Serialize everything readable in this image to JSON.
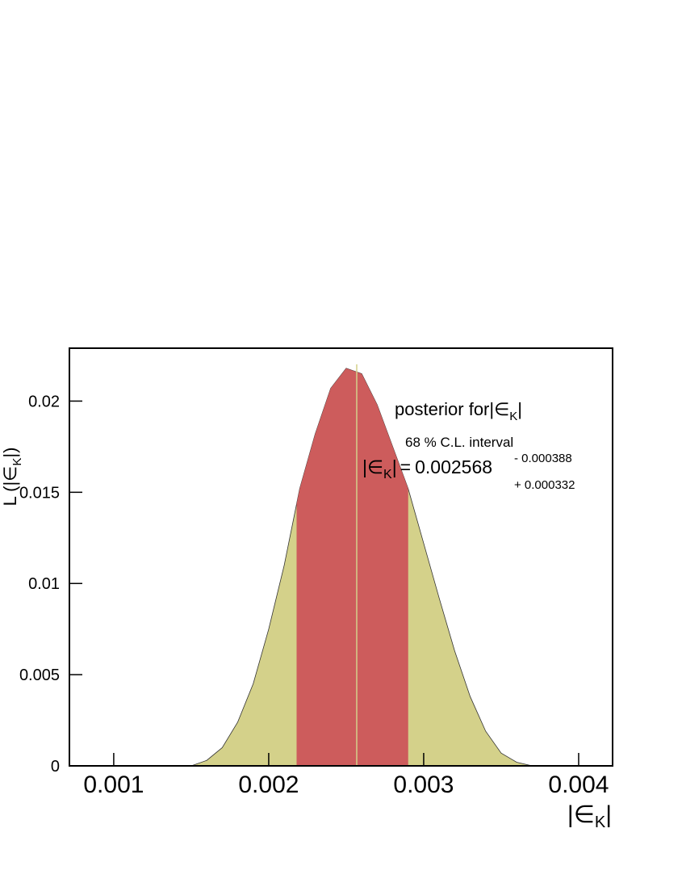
{
  "chart_data": {
    "type": "area",
    "x": [
      0.0015,
      0.0016,
      0.0017,
      0.0018,
      0.0019,
      0.002,
      0.0021,
      0.0022,
      0.0023,
      0.0024,
      0.0025,
      0.0026,
      0.0027,
      0.0028,
      0.0029,
      0.003,
      0.0031,
      0.0032,
      0.0033,
      0.0034,
      0.0035,
      0.0036,
      0.0037
    ],
    "series": [
      {
        "color": "#d4d18a",
        "values": [
          0,
          0.0003,
          0.001,
          0.0024,
          0.0045,
          0.0075,
          0.011,
          0.0152,
          0.0182,
          0.0207,
          0.0218,
          0.0215,
          0.0198,
          0.0175,
          0.0152,
          0.0122,
          0.0092,
          0.0063,
          0.0038,
          0.0019,
          0.0007,
          0.0002,
          0
        ]
      }
    ],
    "interval_color": "#cd5c5c",
    "xlim": [
      0.000714,
      0.004219
    ],
    "xticks": [
      0.001,
      0.002,
      0.003,
      0.004
    ],
    "ylim": [
      0,
      0.0229
    ],
    "yticks": [
      0,
      0.005,
      0.01,
      0.015,
      0.02
    ],
    "variable": {
      "open": "|∈",
      "subscript": "K",
      "close": "|"
    },
    "y_label_prefix": "L (",
    "y_label_suffix": ")",
    "legend_text": "posterior for",
    "interval_text": "68 % C.L. interval",
    "equals": "=",
    "estimate": {
      "value": 0.002568,
      "minus": 0.000388,
      "minus_label": "- 0.000388",
      "plus": 0.000332,
      "plus_label": "+ 0.000332"
    }
  }
}
